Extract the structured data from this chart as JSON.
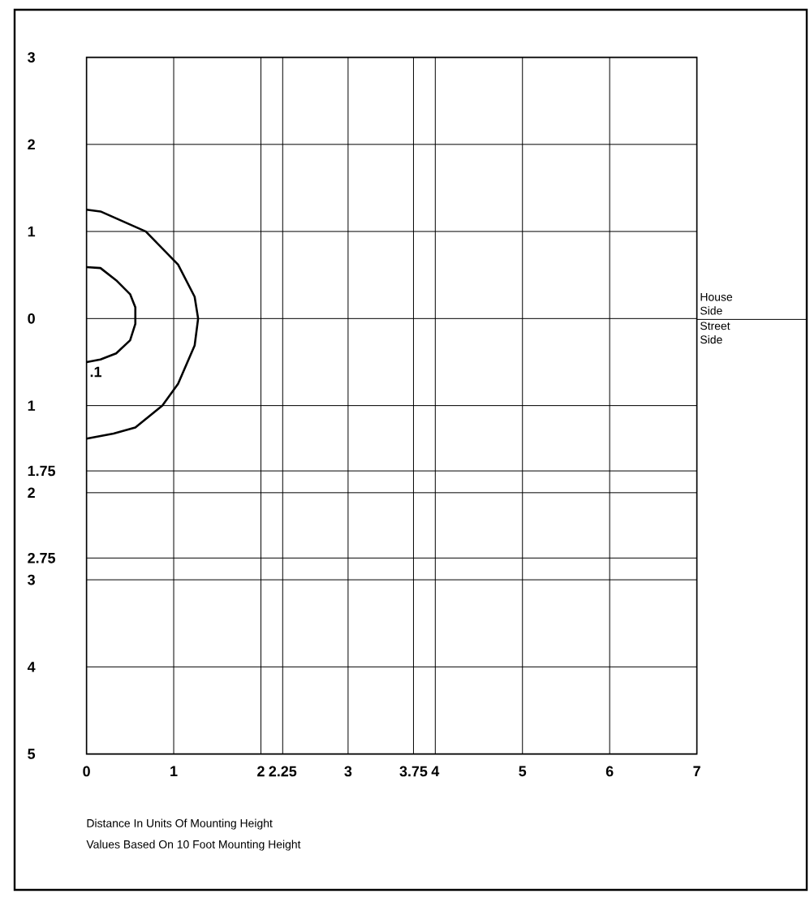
{
  "chart_data": {
    "type": "line",
    "annotations": [
      "Distance In Units Of Mounting Height",
      "Values Based On 10 Foot Mounting Height",
      "House Side",
      "Street Side",
      ".1"
    ],
    "xlim": [
      0,
      7
    ],
    "ylim": [
      -5,
      3
    ],
    "xticks": [
      0,
      1,
      2,
      2.25,
      3,
      3.75,
      4,
      5,
      6,
      7
    ],
    "yticks": [
      {
        "value": 3,
        "label": "3"
      },
      {
        "value": 2,
        "label": "2"
      },
      {
        "value": 1,
        "label": "1"
      },
      {
        "value": 0,
        "label": "0"
      },
      {
        "value": -1,
        "label": "1"
      },
      {
        "value": -1.75,
        "label": "1.75"
      },
      {
        "value": -2,
        "label": "2"
      },
      {
        "value": -2.75,
        "label": "2.75"
      },
      {
        "value": -3,
        "label": "3"
      },
      {
        "value": -4,
        "label": "4"
      },
      {
        "value": -5,
        "label": "5"
      }
    ],
    "grid": true,
    "marker": "none",
    "line_style": "solid",
    "series": [
      {
        "color": "#000000",
        "x": [
          0,
          0.16,
          0.68,
          1.05,
          1.24,
          1.28,
          1.24,
          1.05,
          0.87,
          0.56,
          0.31,
          0
        ],
        "values": [
          1.25,
          1.23,
          1.0,
          0.62,
          0.25,
          0,
          -0.31,
          -0.75,
          -1.0,
          -1.25,
          -1.32,
          -1.38
        ]
      },
      {
        "color": "#000000",
        "x": [
          0,
          0.16,
          0.34,
          0.5,
          0.56,
          0.56,
          0.5,
          0.34,
          0.16,
          0
        ],
        "values": [
          0.59,
          0.58,
          0.44,
          0.28,
          0.13,
          -0.06,
          -0.25,
          -0.4,
          -0.47,
          -0.5
        ]
      }
    ]
  }
}
